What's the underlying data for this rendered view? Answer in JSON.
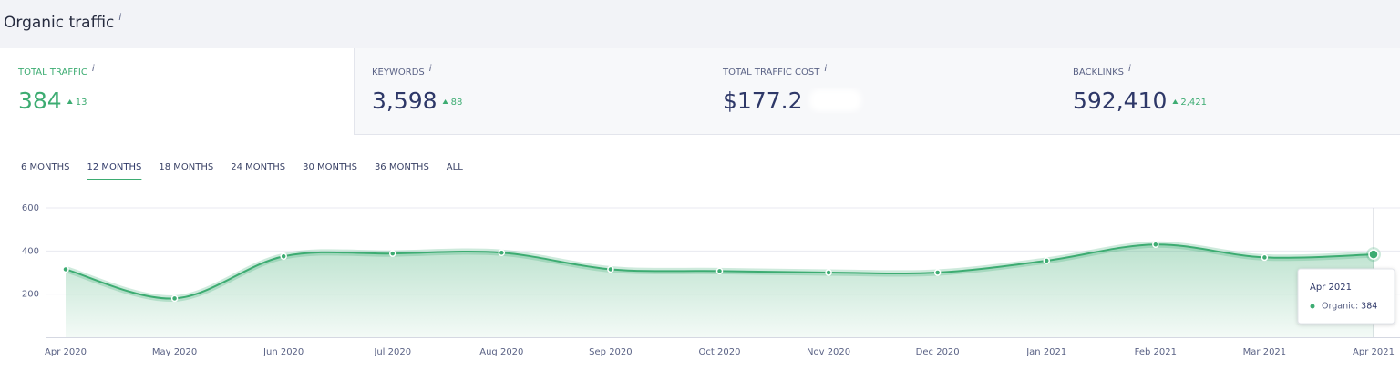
{
  "header": {
    "title": "Organic traffic",
    "info_icon": "i"
  },
  "metrics": [
    {
      "label": "TOTAL TRAFFIC",
      "value": "384",
      "change": "13"
    },
    {
      "label": "KEYWORDS",
      "value": "3,598",
      "change": "88"
    },
    {
      "label": "TOTAL TRAFFIC COST",
      "value": "$177.2"
    },
    {
      "label": "BACKLINKS",
      "value": "592,410",
      "change": "2,421"
    }
  ],
  "tabs": [
    "6 MONTHS",
    "12 MONTHS",
    "18 MONTHS",
    "24 MONTHS",
    "30 MONTHS",
    "36 MONTHS",
    "ALL"
  ],
  "active_tab": 1,
  "chart": {
    "type": "area",
    "x": [
      "Apr 2020",
      "May 2020",
      "Jun 2020",
      "Jul 2020",
      "Aug 2020",
      "Sep 2020",
      "Oct 2020",
      "Nov 2020",
      "Dec 2020",
      "Jan 2021",
      "Feb 2021",
      "Mar 2021",
      "Apr 2021"
    ],
    "values": [
      315,
      180,
      375,
      388,
      392,
      315,
      307,
      300,
      300,
      355,
      430,
      370,
      384
    ],
    "ylim": [
      0,
      600
    ],
    "yticks": [
      200,
      400,
      600
    ],
    "grid": true,
    "color": "#3dac72"
  },
  "tooltip": {
    "title": "Apr 2021",
    "series": "Organic:",
    "value": "384"
  }
}
